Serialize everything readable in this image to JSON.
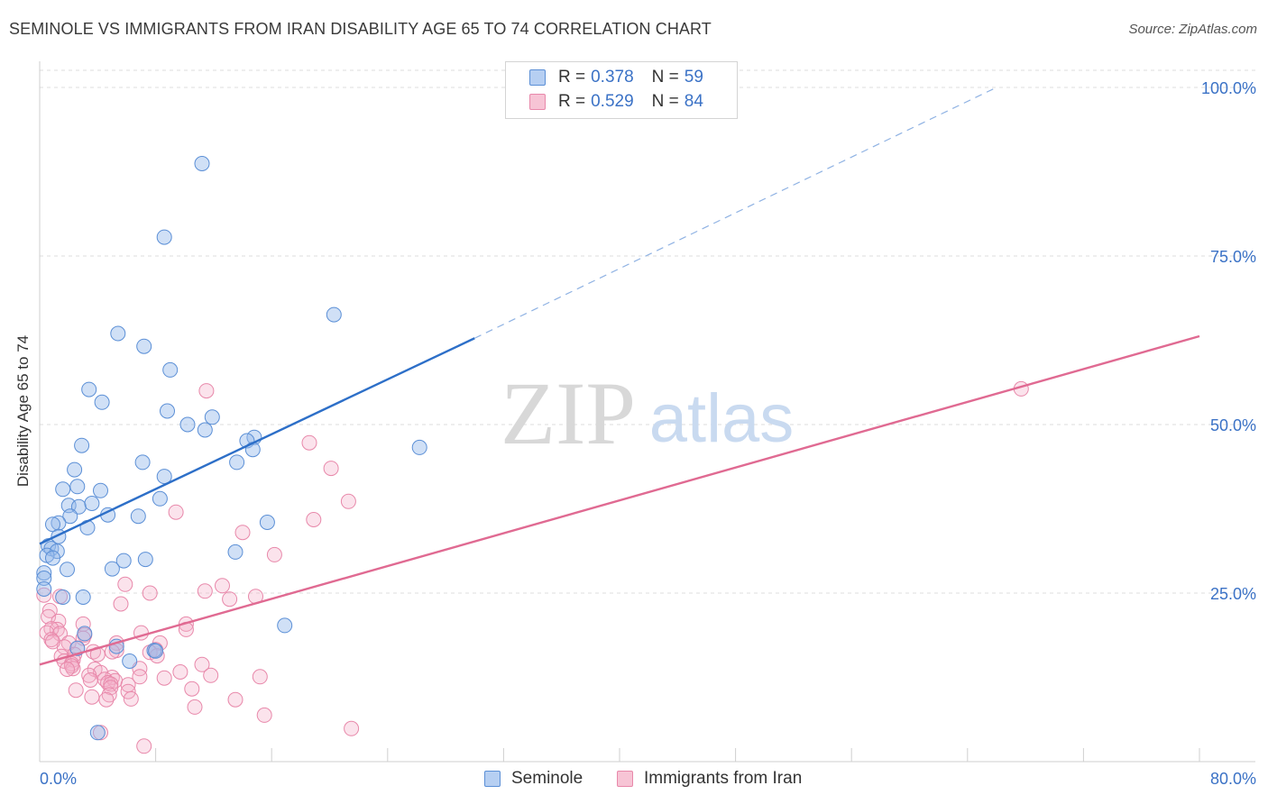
{
  "header": {
    "title": "SEMINOLE VS IMMIGRANTS FROM IRAN DISABILITY AGE 65 TO 74 CORRELATION CHART",
    "source": "Source: ZipAtlas.com"
  },
  "watermark": {
    "zip": "ZIP",
    "atlas": "atlas"
  },
  "legend": {
    "r_label": "R =",
    "n_label": "N =",
    "series": [
      {
        "name": "Seminole",
        "r": "0.378",
        "n": "59"
      },
      {
        "name": "Immigrants from Iran",
        "r": "0.529",
        "n": "84"
      }
    ]
  },
  "chart_data": {
    "type": "scatter",
    "title": "SEMINOLE VS IMMIGRANTS FROM IRAN DISABILITY AGE 65 TO 74 CORRELATION CHART",
    "xlabel": "",
    "ylabel": "Disability Age 65 to 74",
    "xlim": [
      0,
      80
    ],
    "ylim": [
      0,
      100
    ],
    "x_tick_labels": [
      "0.0%",
      "80.0%"
    ],
    "y_ticks": [
      25,
      50,
      75,
      100
    ],
    "y_tick_labels": [
      "25.0%",
      "50.0%",
      "75.0%",
      "100.0%"
    ],
    "grid": true,
    "colors": {
      "seminole": "#5b8fd6",
      "iran": "#e888aa",
      "seminole_line": "#2d6fc8",
      "iran_line": "#e06a92"
    },
    "series": [
      {
        "name": "Seminole",
        "r": 0.378,
        "n": 59,
        "trend": {
          "x0": 0,
          "y0": 32.3,
          "x1": 30.0,
          "y1": 62.8,
          "dash_x1": 66.0,
          "dash_y1": 100.0
        },
        "points": [
          [
            11.2,
            88.7
          ],
          [
            8.6,
            77.8
          ],
          [
            20.3,
            66.3
          ],
          [
            5.4,
            63.5
          ],
          [
            7.2,
            61.6
          ],
          [
            9.0,
            58.1
          ],
          [
            3.4,
            55.2
          ],
          [
            4.3,
            53.3
          ],
          [
            8.8,
            52.0
          ],
          [
            11.9,
            51.1
          ],
          [
            10.2,
            50.0
          ],
          [
            11.4,
            49.2
          ],
          [
            14.8,
            48.1
          ],
          [
            14.3,
            47.6
          ],
          [
            2.9,
            46.9
          ],
          [
            26.2,
            46.6
          ],
          [
            14.7,
            46.3
          ],
          [
            13.6,
            44.4
          ],
          [
            7.1,
            44.4
          ],
          [
            2.4,
            43.3
          ],
          [
            8.6,
            42.3
          ],
          [
            2.6,
            40.8
          ],
          [
            1.6,
            40.4
          ],
          [
            4.2,
            40.2
          ],
          [
            8.3,
            39.0
          ],
          [
            2.0,
            38.0
          ],
          [
            2.7,
            37.8
          ],
          [
            3.6,
            38.3
          ],
          [
            4.7,
            36.6
          ],
          [
            6.8,
            36.4
          ],
          [
            2.1,
            36.4
          ],
          [
            1.3,
            35.4
          ],
          [
            0.9,
            35.2
          ],
          [
            3.3,
            34.7
          ],
          [
            1.3,
            33.4
          ],
          [
            0.6,
            32.0
          ],
          [
            0.8,
            31.6
          ],
          [
            1.2,
            31.2
          ],
          [
            0.5,
            30.6
          ],
          [
            0.9,
            30.2
          ],
          [
            13.5,
            31.1
          ],
          [
            15.7,
            35.5
          ],
          [
            7.3,
            30.0
          ],
          [
            5.8,
            29.8
          ],
          [
            5.0,
            28.6
          ],
          [
            1.9,
            28.5
          ],
          [
            0.3,
            28.0
          ],
          [
            0.3,
            27.2
          ],
          [
            0.3,
            25.6
          ],
          [
            1.6,
            24.4
          ],
          [
            3.0,
            24.4
          ],
          [
            16.9,
            20.2
          ],
          [
            3.1,
            19.0
          ],
          [
            2.6,
            16.8
          ],
          [
            5.3,
            17.1
          ],
          [
            7.9,
            16.5
          ],
          [
            8.0,
            16.4
          ],
          [
            6.2,
            14.9
          ],
          [
            4.0,
            4.3
          ]
        ]
      },
      {
        "name": "Immigrants from Iran",
        "r": 0.529,
        "n": 84,
        "trend": {
          "x0": 0,
          "y0": 14.4,
          "x1": 80.0,
          "y1": 63.1
        },
        "points": [
          [
            67.7,
            55.3
          ],
          [
            11.5,
            55.0
          ],
          [
            18.6,
            47.3
          ],
          [
            20.1,
            43.5
          ],
          [
            21.3,
            38.6
          ],
          [
            9.4,
            37.0
          ],
          [
            18.9,
            35.9
          ],
          [
            14.0,
            34.0
          ],
          [
            16.2,
            30.7
          ],
          [
            5.9,
            26.3
          ],
          [
            12.6,
            26.1
          ],
          [
            11.4,
            25.3
          ],
          [
            7.6,
            25.0
          ],
          [
            13.1,
            24.1
          ],
          [
            14.9,
            24.5
          ],
          [
            0.3,
            24.7
          ],
          [
            1.4,
            24.5
          ],
          [
            5.6,
            23.4
          ],
          [
            0.7,
            22.4
          ],
          [
            0.6,
            21.5
          ],
          [
            1.3,
            20.8
          ],
          [
            10.1,
            20.4
          ],
          [
            3.0,
            20.4
          ],
          [
            10.1,
            19.6
          ],
          [
            1.2,
            19.6
          ],
          [
            0.8,
            19.7
          ],
          [
            0.5,
            19.1
          ],
          [
            1.4,
            19.0
          ],
          [
            7.0,
            19.1
          ],
          [
            3.1,
            18.8
          ],
          [
            0.8,
            18.1
          ],
          [
            3.0,
            18.3
          ],
          [
            2.0,
            17.6
          ],
          [
            5.3,
            17.6
          ],
          [
            8.3,
            17.6
          ],
          [
            1.7,
            17.0
          ],
          [
            2.6,
            16.8
          ],
          [
            5.3,
            16.5
          ],
          [
            5.0,
            16.3
          ],
          [
            3.7,
            16.3
          ],
          [
            8.0,
            16.6
          ],
          [
            7.6,
            16.2
          ],
          [
            2.4,
            15.9
          ],
          [
            1.5,
            15.6
          ],
          [
            4.0,
            15.9
          ],
          [
            8.1,
            15.7
          ],
          [
            2.3,
            15.1
          ],
          [
            1.7,
            14.9
          ],
          [
            2.2,
            14.5
          ],
          [
            11.2,
            14.4
          ],
          [
            2.3,
            13.8
          ],
          [
            6.9,
            13.8
          ],
          [
            3.8,
            13.7
          ],
          [
            9.7,
            13.3
          ],
          [
            4.2,
            13.2
          ],
          [
            3.4,
            12.8
          ],
          [
            6.9,
            12.6
          ],
          [
            11.8,
            12.8
          ],
          [
            5.0,
            12.5
          ],
          [
            15.2,
            12.6
          ],
          [
            8.6,
            12.4
          ],
          [
            3.5,
            12.1
          ],
          [
            4.5,
            12.2
          ],
          [
            5.2,
            12.0
          ],
          [
            4.7,
            11.7
          ],
          [
            6.1,
            11.4
          ],
          [
            4.9,
            11.5
          ],
          [
            4.9,
            11.0
          ],
          [
            10.5,
            10.8
          ],
          [
            2.5,
            10.6
          ],
          [
            6.1,
            10.4
          ],
          [
            4.8,
            9.9
          ],
          [
            4.6,
            9.2
          ],
          [
            6.3,
            9.3
          ],
          [
            13.5,
            9.2
          ],
          [
            10.7,
            8.1
          ],
          [
            15.5,
            6.9
          ],
          [
            4.2,
            4.3
          ],
          [
            21.5,
            4.9
          ],
          [
            7.2,
            2.3
          ],
          [
            3.6,
            9.6
          ],
          [
            2.2,
            14.2
          ],
          [
            1.9,
            13.7
          ],
          [
            0.9,
            17.8
          ]
        ]
      }
    ]
  }
}
